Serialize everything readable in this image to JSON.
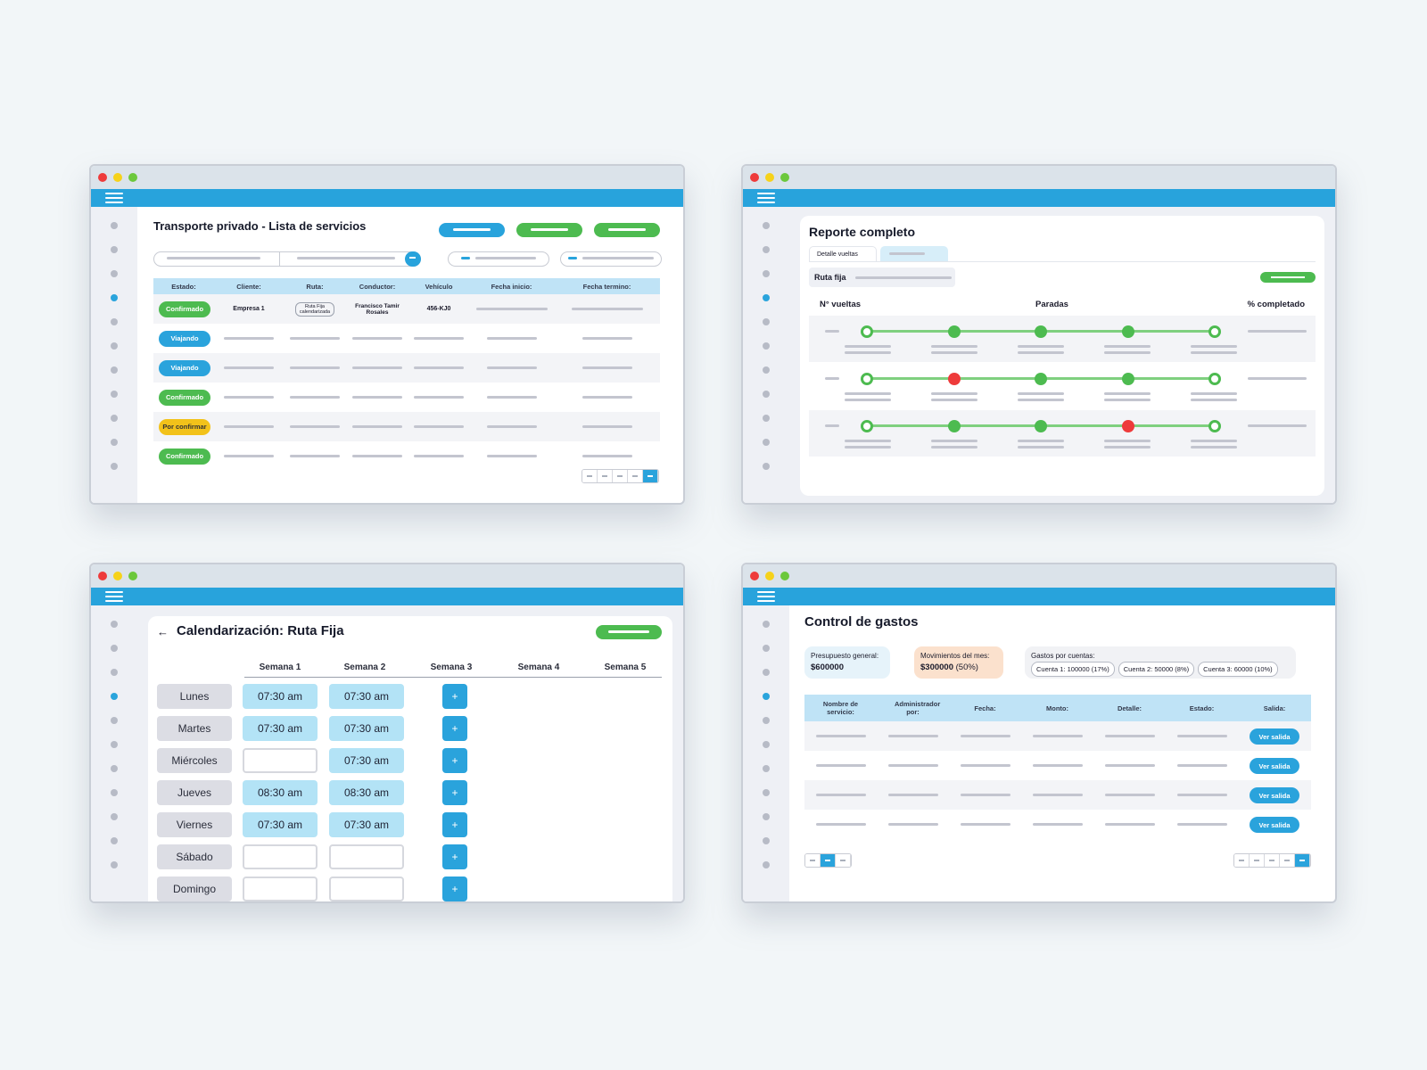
{
  "colors": {
    "accent": "#28a3dc",
    "green": "#4dbb50",
    "yellow": "#f2c21a",
    "red": "#ee3b3b",
    "header_light": "#bfe3f6",
    "background": "#f2f6f8"
  },
  "services": {
    "title": "Transporte privado - Lista de servicios",
    "columns": [
      "Estado:",
      "Cliente:",
      "Ruta:",
      "Conductor:",
      "Vehículo",
      "Fecha inicio:",
      "Fecha termino:"
    ],
    "first_row": {
      "status": "Confirmado",
      "client": "Empresa 1",
      "route": "Ruta Fija calendarizada",
      "driver": "Francisco Tamir Rosales",
      "vehicle": "456-KJ0"
    },
    "statuses": [
      "Viajando",
      "Viajando",
      "Confirmado",
      "Por confirmar",
      "Confirmado"
    ]
  },
  "report": {
    "title": "Reporte completo",
    "tab_active": "Detalle vueltas",
    "route_label": "Ruta fija",
    "col_laps": "N° vueltas",
    "col_stops": "Paradas",
    "col_completed": "% completado"
  },
  "calendar": {
    "back_icon": "arrow-left-icon",
    "back_glyph": "←",
    "title": "Calendarización: Ruta Fija",
    "weeks": [
      "Semana 1",
      "Semana 2",
      "Semana 3",
      "Semana 4",
      "Semana 5"
    ],
    "add_glyph": "+",
    "days": [
      {
        "name": "Lunes",
        "w1": "07:30 am",
        "w2": "07:30 am"
      },
      {
        "name": "Martes",
        "w1": "07:30 am",
        "w2": "07:30 am"
      },
      {
        "name": "Miércoles",
        "w1": "",
        "w2": "07:30 am"
      },
      {
        "name": "Jueves",
        "w1": "08:30 am",
        "w2": "08:30 am"
      },
      {
        "name": "Viernes",
        "w1": "07:30 am",
        "w2": "07:30 am"
      },
      {
        "name": "Sábado",
        "w1": "",
        "w2": ""
      },
      {
        "name": "Domingo",
        "w1": "",
        "w2": ""
      }
    ]
  },
  "expenses": {
    "title": "Control de gastos",
    "budget_label": "Presupuesto general:",
    "budget_value": "$600000",
    "month_label": "Movimientos del mes:",
    "month_value": "$300000",
    "month_pct": "(50%)",
    "accounts_label": "Gastos por cuentas:",
    "accounts": [
      "Cuenta 1: 100000 (17%)",
      "Cuenta 2: 50000 (8%)",
      "Cuenta 3: 60000 (10%)"
    ],
    "columns": [
      "Nombre de servicio:",
      "Administrador por:",
      "Fecha:",
      "Monto:",
      "Detalle:",
      "Estado:",
      "Salida:"
    ],
    "view_button": "Ver salida"
  }
}
